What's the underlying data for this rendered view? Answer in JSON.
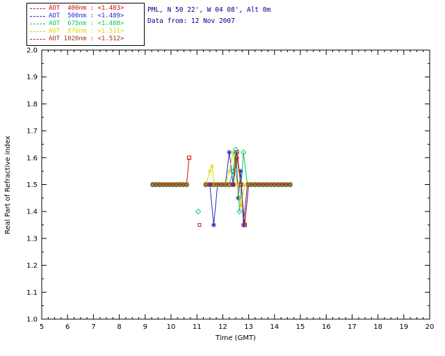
{
  "header": {
    "location": "PML, N 50 22', W 04 08', Alt 0m",
    "date_line": "Data from: 12 Nov 2007"
  },
  "legend": {
    "entries": [
      {
        "label": "AOT  400nm : <1.483>",
        "color": "#dd0000"
      },
      {
        "label": "AOT  500nm : <1.489>",
        "color": "#2222cc"
      },
      {
        "label": "AOT  675nm : <1.488>",
        "color": "#00c864"
      },
      {
        "label": "AOT  870nm : <1.511>",
        "color": "#d8d800"
      },
      {
        "label": "AOT 1020nm : <1.512>",
        "color": "#a03020"
      }
    ]
  },
  "chart_data": {
    "type": "line",
    "title": "",
    "xlabel": "Time (GMT)",
    "ylabel": "Real Part of Refractive index",
    "xlim": [
      5,
      20
    ],
    "ylim": [
      1.0,
      2.0
    ],
    "xticks": [
      5,
      6,
      7,
      8,
      9,
      10,
      11,
      12,
      13,
      14,
      15,
      16,
      17,
      18,
      19,
      20
    ],
    "yticks": [
      1.0,
      1.1,
      1.2,
      1.3,
      1.4,
      1.5,
      1.6,
      1.7,
      1.8,
      1.9,
      2.0
    ],
    "grid": false,
    "legend_position": "top-left",
    "series": [
      {
        "name": "AOT 400nm",
        "mean": "<1.483>",
        "color": "#dd0000",
        "marker": "square",
        "points": [
          [
            9.3,
            1.5
          ],
          [
            9.43,
            1.5
          ],
          [
            9.56,
            1.5
          ],
          [
            9.69,
            1.5
          ],
          [
            9.82,
            1.5
          ],
          [
            9.95,
            1.5
          ],
          [
            10.08,
            1.5
          ],
          [
            10.21,
            1.5
          ],
          [
            10.34,
            1.5
          ],
          [
            10.47,
            1.5
          ],
          [
            10.6,
            1.5
          ],
          [
            10.7,
            1.6
          ],
          null,
          [
            11.35,
            1.5
          ],
          [
            11.5,
            1.5
          ],
          [
            11.65,
            1.5
          ],
          [
            11.8,
            1.5
          ],
          [
            11.95,
            1.5
          ],
          [
            12.1,
            1.5
          ],
          [
            12.25,
            1.5
          ],
          [
            12.4,
            1.5
          ],
          [
            12.55,
            1.62
          ],
          [
            12.7,
            1.5
          ],
          [
            12.85,
            1.35
          ],
          [
            13.0,
            1.5
          ],
          [
            13.1,
            1.5
          ],
          [
            13.25,
            1.5
          ],
          [
            13.4,
            1.5
          ],
          [
            13.55,
            1.5
          ],
          [
            13.7,
            1.5
          ],
          [
            13.85,
            1.5
          ],
          [
            14.0,
            1.5
          ],
          [
            14.15,
            1.5
          ],
          [
            14.3,
            1.5
          ],
          [
            14.45,
            1.5
          ],
          [
            14.6,
            1.5
          ]
        ]
      },
      {
        "name": "AOT 500nm",
        "mean": "<1.489>",
        "color": "#2222cc",
        "marker": "asterisk",
        "points": [
          [
            9.3,
            1.5
          ],
          [
            9.43,
            1.5
          ],
          [
            9.56,
            1.5
          ],
          [
            9.69,
            1.5
          ],
          [
            9.82,
            1.5
          ],
          [
            9.95,
            1.5
          ],
          [
            10.08,
            1.5
          ],
          [
            10.21,
            1.5
          ],
          [
            10.34,
            1.5
          ],
          [
            10.47,
            1.5
          ],
          [
            10.6,
            1.5
          ],
          null,
          [
            11.35,
            1.5
          ],
          [
            11.5,
            1.5
          ],
          [
            11.65,
            1.35
          ],
          [
            11.8,
            1.5
          ],
          [
            11.95,
            1.5
          ],
          [
            12.1,
            1.5
          ],
          [
            12.25,
            1.62
          ],
          [
            12.4,
            1.5
          ],
          [
            12.5,
            1.62
          ],
          [
            12.6,
            1.45
          ],
          [
            12.7,
            1.55
          ],
          [
            12.8,
            1.35
          ],
          [
            12.95,
            1.5
          ],
          [
            13.1,
            1.5
          ],
          [
            13.25,
            1.5
          ],
          [
            13.4,
            1.5
          ],
          [
            13.55,
            1.5
          ],
          [
            13.7,
            1.5
          ],
          [
            13.85,
            1.5
          ],
          [
            14.0,
            1.5
          ],
          [
            14.15,
            1.5
          ],
          [
            14.3,
            1.5
          ],
          [
            14.45,
            1.5
          ],
          [
            14.6,
            1.5
          ]
        ]
      },
      {
        "name": "AOT 675nm",
        "mean": "<1.488>",
        "color": "#00c864",
        "marker": "diamond",
        "points": [
          [
            9.3,
            1.5
          ],
          [
            9.43,
            1.5
          ],
          [
            9.56,
            1.5
          ],
          [
            9.69,
            1.5
          ],
          [
            9.82,
            1.5
          ],
          [
            9.95,
            1.5
          ],
          [
            10.08,
            1.5
          ],
          [
            10.21,
            1.5
          ],
          [
            10.34,
            1.5
          ],
          [
            10.47,
            1.5
          ],
          [
            10.6,
            1.5
          ],
          null,
          [
            11.05,
            1.4
          ],
          null,
          [
            11.35,
            1.5
          ],
          [
            11.5,
            1.5
          ],
          [
            11.65,
            1.5
          ],
          [
            11.8,
            1.5
          ],
          [
            11.95,
            1.5
          ],
          [
            12.1,
            1.5
          ],
          [
            12.25,
            1.5
          ],
          [
            12.4,
            1.55
          ],
          [
            12.5,
            1.63
          ],
          [
            12.65,
            1.4
          ],
          [
            12.8,
            1.62
          ],
          [
            12.95,
            1.5
          ],
          [
            13.1,
            1.5
          ],
          [
            13.25,
            1.5
          ],
          [
            13.4,
            1.5
          ],
          [
            13.55,
            1.5
          ],
          [
            13.7,
            1.5
          ],
          [
            13.85,
            1.5
          ],
          [
            14.0,
            1.5
          ],
          [
            14.15,
            1.5
          ],
          [
            14.3,
            1.5
          ],
          [
            14.45,
            1.5
          ],
          [
            14.6,
            1.5
          ]
        ]
      },
      {
        "name": "AOT 870nm",
        "mean": "<1.511>",
        "color": "#d8d800",
        "marker": "x",
        "points": [
          [
            9.3,
            1.5
          ],
          [
            9.43,
            1.5
          ],
          [
            9.56,
            1.5
          ],
          [
            9.69,
            1.5
          ],
          [
            9.82,
            1.5
          ],
          [
            9.95,
            1.5
          ],
          [
            10.08,
            1.5
          ],
          [
            10.21,
            1.5
          ],
          [
            10.34,
            1.5
          ],
          [
            10.47,
            1.5
          ],
          [
            10.6,
            1.5
          ],
          null,
          [
            11.35,
            1.5
          ],
          [
            11.5,
            1.55
          ],
          [
            11.58,
            1.57
          ],
          [
            11.68,
            1.5
          ],
          [
            11.8,
            1.5
          ],
          [
            11.95,
            1.5
          ],
          [
            12.1,
            1.5
          ],
          [
            12.25,
            1.55
          ],
          [
            12.4,
            1.62
          ],
          [
            12.55,
            1.5
          ],
          [
            12.7,
            1.42
          ],
          [
            12.85,
            1.5
          ],
          [
            13.0,
            1.5
          ],
          [
            13.1,
            1.5
          ],
          [
            13.25,
            1.5
          ],
          [
            13.4,
            1.5
          ],
          [
            13.55,
            1.5
          ],
          [
            13.7,
            1.5
          ],
          [
            13.85,
            1.5
          ],
          [
            14.0,
            1.5
          ],
          [
            14.15,
            1.5
          ],
          [
            14.3,
            1.5
          ],
          [
            14.45,
            1.5
          ],
          [
            14.6,
            1.5
          ]
        ]
      },
      {
        "name": "AOT 1020nm",
        "mean": "<1.512>",
        "color": "#a03020",
        "marker": "square-small",
        "points": [
          [
            9.3,
            1.5
          ],
          [
            9.43,
            1.5
          ],
          [
            9.56,
            1.5
          ],
          [
            9.69,
            1.5
          ],
          [
            9.82,
            1.5
          ],
          [
            9.95,
            1.5
          ],
          [
            10.08,
            1.5
          ],
          [
            10.21,
            1.5
          ],
          [
            10.34,
            1.5
          ],
          [
            10.47,
            1.5
          ],
          [
            10.6,
            1.5
          ],
          null,
          [
            11.1,
            1.35
          ],
          null,
          [
            11.35,
            1.5
          ],
          [
            11.5,
            1.5
          ],
          [
            11.65,
            1.5
          ],
          [
            11.8,
            1.5
          ],
          [
            11.95,
            1.5
          ],
          [
            12.1,
            1.5
          ],
          [
            12.25,
            1.5
          ],
          [
            12.4,
            1.5
          ],
          [
            12.55,
            1.6
          ],
          [
            12.7,
            1.5
          ],
          [
            12.85,
            1.35
          ],
          [
            13.0,
            1.5
          ],
          [
            13.1,
            1.5
          ],
          [
            13.25,
            1.5
          ],
          [
            13.4,
            1.5
          ],
          [
            13.55,
            1.5
          ],
          [
            13.7,
            1.5
          ],
          [
            13.85,
            1.5
          ],
          [
            14.0,
            1.5
          ],
          [
            14.15,
            1.5
          ],
          [
            14.3,
            1.5
          ],
          [
            14.45,
            1.5
          ],
          [
            14.6,
            1.5
          ]
        ]
      }
    ]
  }
}
